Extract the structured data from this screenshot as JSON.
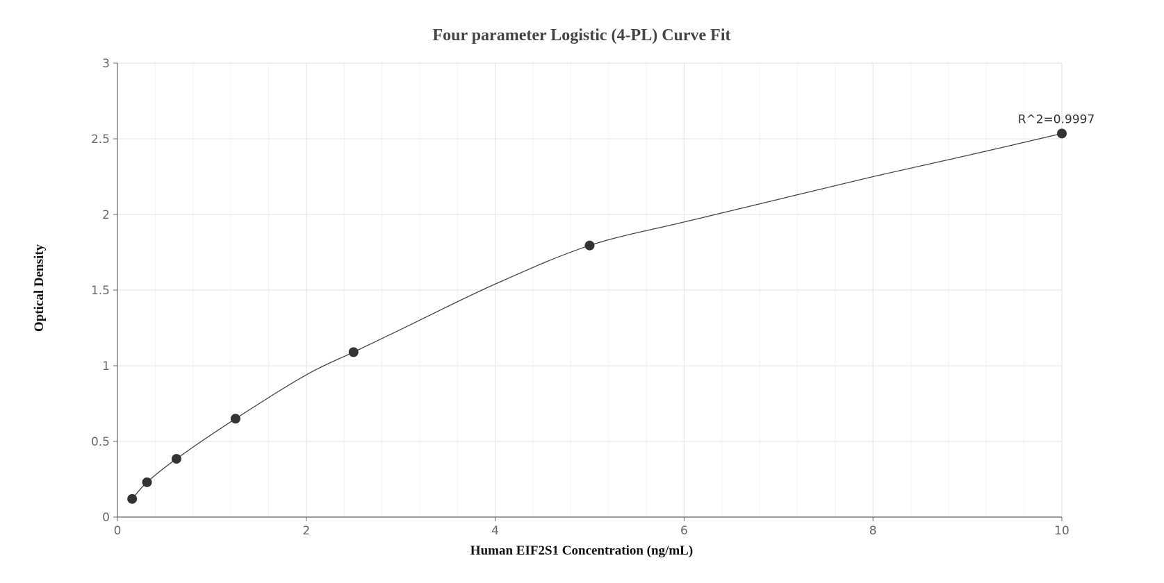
{
  "chart_data": {
    "type": "scatter",
    "title": "Four parameter Logistic (4-PL) Curve Fit",
    "xlabel": "Human EIF2S1 Concentration (ng/mL)",
    "ylabel": "Optical Density",
    "xlim": [
      0,
      10
    ],
    "ylim": [
      0,
      3
    ],
    "x_ticks": [
      0,
      2,
      4,
      6,
      8,
      10
    ],
    "y_ticks": [
      0,
      0.5,
      1,
      1.5,
      2,
      2.5,
      3
    ],
    "x_tick_labels": [
      "0",
      "2",
      "4",
      "6",
      "8",
      "10"
    ],
    "y_tick_labels": [
      "0",
      "0.5",
      "1",
      "1.5",
      "2",
      "2.5",
      "3"
    ],
    "grid": true,
    "series": [
      {
        "x": [
          0.156,
          0.313,
          0.625,
          1.25,
          2.5,
          5,
          10
        ],
        "y": [
          0.12,
          0.23,
          0.385,
          0.65,
          1.09,
          1.795,
          2.535
        ]
      }
    ],
    "fit_curve": {
      "x": [
        0.156,
        0.313,
        0.625,
        1.25,
        2.0,
        2.5,
        3.0,
        4.0,
        5.0,
        6.0,
        7.0,
        8.0,
        9.0,
        10.0
      ],
      "y": [
        0.12,
        0.23,
        0.385,
        0.65,
        0.94,
        1.09,
        1.24,
        1.54,
        1.795,
        1.95,
        2.1,
        2.25,
        2.39,
        2.535
      ]
    },
    "annotation": "R^2=0.9997",
    "colors": {
      "points": "#333333",
      "curve": "#444444",
      "grid": "#e3e6ef",
      "axis": "#666666"
    }
  }
}
